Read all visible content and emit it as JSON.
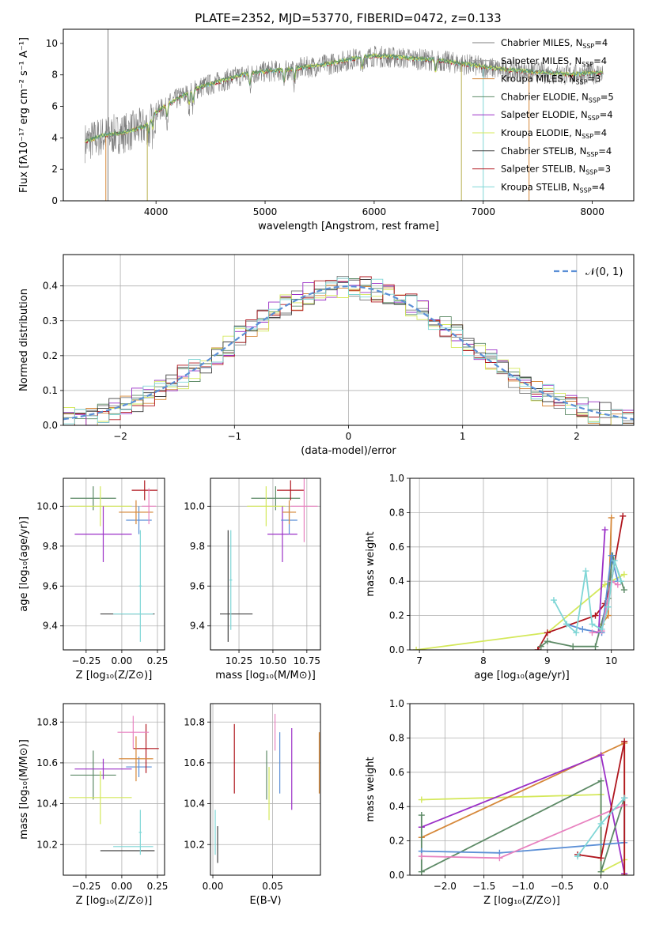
{
  "figure": {
    "title": "PLATE=2352, MJD=53770, FIBERID=0472, z=0.133"
  },
  "models": [
    {
      "name": "Chabrier MILES",
      "nssp": "4",
      "color": "#7f7f7f"
    },
    {
      "name": "Salpeter MILES",
      "nssp": "4",
      "color": "#9e9e9e"
    },
    {
      "name": "Kroupa MILES",
      "nssp": "3",
      "color": "#d6883a"
    },
    {
      "name": "Chabrier ELODIE",
      "nssp": "5",
      "color": "#5d8a66"
    },
    {
      "name": "Salpeter ELODIE",
      "nssp": "4",
      "color": "#9b30c7"
    },
    {
      "name": "Kroupa ELODIE",
      "nssp": "4",
      "color": "#d4e85a"
    },
    {
      "name": "Chabrier STELIB",
      "nssp": "4",
      "color": "#404040"
    },
    {
      "name": "Salpeter STELIB",
      "nssp": "3",
      "color": "#b0171f"
    },
    {
      "name": "Kroupa STELIB",
      "nssp": "4",
      "color": "#7fd6d6"
    }
  ],
  "chart_data": [
    {
      "id": "spectrum",
      "type": "line",
      "title": "PLATE=2352, MJD=53770, FIBERID=0472, z=0.133",
      "xlabel": "wavelength [Angstrom, rest frame]",
      "ylabel": "Flux [fλ10⁻¹⁷ erg cm⁻² s⁻¹ A⁻¹]",
      "xlim": [
        3150,
        8380
      ],
      "ylim": [
        0,
        10.9
      ],
      "xticks": [
        4000,
        5000,
        6000,
        7000,
        8000
      ],
      "yticks": [
        0,
        2,
        4,
        6,
        8,
        10
      ],
      "grid": false,
      "legend": "right",
      "continuum": [
        [
          3350,
          3.7
        ],
        [
          3500,
          4.1
        ],
        [
          3700,
          4.3
        ],
        [
          3900,
          4.7
        ],
        [
          4000,
          5.6
        ],
        [
          4200,
          6.5
        ],
        [
          4400,
          7.2
        ],
        [
          4600,
          7.6
        ],
        [
          4800,
          8.0
        ],
        [
          5000,
          8.2
        ],
        [
          5200,
          8.3
        ],
        [
          5400,
          8.5
        ],
        [
          5600,
          8.7
        ],
        [
          5800,
          9.0
        ],
        [
          6000,
          9.2
        ],
        [
          6200,
          9.1
        ],
        [
          6400,
          9.0
        ],
        [
          6600,
          8.9
        ],
        [
          6800,
          8.7
        ],
        [
          7000,
          8.5
        ],
        [
          7200,
          8.3
        ],
        [
          7400,
          8.2
        ],
        [
          7600,
          8.1
        ],
        [
          7800,
          8.0
        ],
        [
          8000,
          8.1
        ],
        [
          8100,
          8.1
        ]
      ],
      "model_end": [
        3350,
        8100
      ]
    },
    {
      "id": "residuals",
      "type": "histogram",
      "xlabel": "(data-model)/error",
      "ylabel": "Normed distribution",
      "xlim": [
        -2.5,
        2.5
      ],
      "ylim": [
        0,
        0.49
      ],
      "xticks": [
        -2,
        -1,
        0,
        1,
        2
      ],
      "yticks": [
        0.0,
        0.1,
        0.2,
        0.3,
        0.4
      ],
      "grid": true,
      "bin_width": 0.1,
      "reference": {
        "label": "𝒩(0, 1)",
        "mean": 0,
        "sigma": 1,
        "color": "#5b8fd6"
      }
    },
    {
      "id": "z-age",
      "type": "errorbar",
      "xlabel": "Z [log₁₀(Z/Z⊙)]",
      "ylabel": "age  [log₁₀(age/yr)]",
      "xlim": [
        -0.41,
        0.3
      ],
      "ylim": [
        9.28,
        10.14
      ],
      "xticks": [
        -0.25,
        0.0,
        0.25
      ],
      "yticks": [
        9.4,
        9.6,
        9.8,
        10.0
      ],
      "grid": true,
      "points": [
        {
          "x": -0.2,
          "y": 10.04,
          "ex": 0.16,
          "ey": 0.06,
          "c": "#5d8a66"
        },
        {
          "x": -0.15,
          "y": 10.0,
          "ex": 0.22,
          "ey": 0.1,
          "c": "#d4e85a"
        },
        {
          "x": -0.13,
          "y": 9.86,
          "ex": 0.2,
          "ey": 0.14,
          "c": "#9b30c7"
        },
        {
          "x": 0.12,
          "y": 9.93,
          "ex": 0.09,
          "ey": 0.07,
          "c": "#5b8fd6"
        },
        {
          "x": 0.16,
          "y": 10.08,
          "ex": 0.09,
          "ey": 0.05,
          "c": "#b0171f"
        },
        {
          "x": 0.1,
          "y": 9.97,
          "ex": 0.12,
          "ey": 0.06,
          "c": "#d6883a"
        },
        {
          "x": 0.19,
          "y": 10.0,
          "ex": 0.05,
          "ey": 0.09,
          "c": "#e882c0"
        },
        {
          "x": 0.04,
          "y": 9.46,
          "ex": 0.19,
          "ey": 0.0,
          "c": "#404040"
        },
        {
          "x": 0.13,
          "y": 9.6,
          "ex": 0.01,
          "ey": 0.28,
          "c": "#7fd6d6"
        },
        {
          "x": 0.08,
          "y": 9.46,
          "ex": 0.14,
          "ey": 0.0,
          "c": "#7fd6d6"
        }
      ]
    },
    {
      "id": "mass-age",
      "type": "errorbar",
      "xlabel": "mass [log₁₀(M/M⊙)]",
      "ylabel": "",
      "xlim": [
        10.04,
        10.85
      ],
      "ylim": [
        9.28,
        10.14
      ],
      "xticks": [
        10.25,
        10.5,
        10.75
      ],
      "yticks": [
        9.4,
        9.6,
        9.8,
        10.0
      ],
      "grid": true,
      "points": [
        {
          "x": 10.52,
          "y": 10.04,
          "ex": 0.18,
          "ey": 0.06,
          "c": "#5d8a66"
        },
        {
          "x": 10.45,
          "y": 10.0,
          "ex": 0.14,
          "ey": 0.1,
          "c": "#d4e85a"
        },
        {
          "x": 10.57,
          "y": 9.86,
          "ex": 0.11,
          "ey": 0.14,
          "c": "#9b30c7"
        },
        {
          "x": 10.62,
          "y": 9.93,
          "ex": 0.06,
          "ey": 0.07,
          "c": "#5b8fd6"
        },
        {
          "x": 10.63,
          "y": 10.08,
          "ex": 0.1,
          "ey": 0.05,
          "c": "#b0171f"
        },
        {
          "x": 10.62,
          "y": 9.97,
          "ex": 0.05,
          "ey": 0.06,
          "c": "#d6883a"
        },
        {
          "x": 10.73,
          "y": 10.0,
          "ex": 0.1,
          "ey": 0.18,
          "c": "#e882c0"
        },
        {
          "x": 10.23,
          "y": 9.46,
          "ex": 0.12,
          "ey": 0.0,
          "c": "#404040"
        },
        {
          "x": 10.19,
          "y": 9.63,
          "ex": 0.01,
          "ey": 0.25,
          "c": "#7fd6d6"
        },
        {
          "x": 10.17,
          "y": 9.6,
          "ex": 0.0,
          "ey": 0.28,
          "c": "#404040"
        }
      ]
    },
    {
      "id": "age-weight",
      "type": "line",
      "xlabel": "age  [log₁₀(age/yr)]",
      "ylabel": "mass weight",
      "xlim": [
        6.85,
        10.35
      ],
      "ylim": [
        0,
        1.0
      ],
      "xticks": [
        7,
        8,
        9,
        10
      ],
      "yticks": [
        0.0,
        0.2,
        0.4,
        0.6,
        0.8,
        1.0
      ],
      "grid": true,
      "series": [
        {
          "c": "#d4e85a",
          "pts": [
            [
              6.95,
              0.0
            ],
            [
              9.0,
              0.1
            ],
            [
              9.9,
              0.38
            ],
            [
              10.2,
              0.44
            ]
          ]
        },
        {
          "c": "#b0171f",
          "pts": [
            [
              8.85,
              0.0
            ],
            [
              9.0,
              0.1
            ],
            [
              9.75,
              0.2
            ],
            [
              9.9,
              0.27
            ],
            [
              10.0,
              0.4
            ],
            [
              10.18,
              0.78
            ]
          ]
        },
        {
          "c": "#d6883a",
          "pts": [
            [
              9.85,
              0.15
            ],
            [
              9.95,
              0.2
            ],
            [
              10.0,
              0.77
            ]
          ]
        },
        {
          "c": "#9b30c7",
          "pts": [
            [
              9.8,
              0.1
            ],
            [
              9.9,
              0.7
            ]
          ]
        },
        {
          "c": "#5d8a66",
          "pts": [
            [
              8.9,
              0.02
            ],
            [
              9.0,
              0.05
            ],
            [
              9.4,
              0.02
            ],
            [
              9.75,
              0.02
            ],
            [
              9.95,
              0.3
            ],
            [
              10.02,
              0.55
            ],
            [
              10.2,
              0.35
            ]
          ]
        },
        {
          "c": "#5b8fd6",
          "pts": [
            [
              9.3,
              0.15
            ],
            [
              9.55,
              0.12
            ],
            [
              9.85,
              0.1
            ],
            [
              10.0,
              0.55
            ],
            [
              10.1,
              0.4
            ]
          ]
        },
        {
          "c": "#e882c0",
          "pts": [
            [
              9.7,
              0.1
            ],
            [
              9.85,
              0.11
            ],
            [
              10.0,
              0.4
            ],
            [
              10.1,
              0.38
            ]
          ]
        },
        {
          "c": "#7fd6d6",
          "pts": [
            [
              9.1,
              0.29
            ],
            [
              9.3,
              0.15
            ],
            [
              9.45,
              0.1
            ],
            [
              9.6,
              0.46
            ],
            [
              9.7,
              0.15
            ],
            [
              9.85,
              0.12
            ],
            [
              9.95,
              0.25
            ],
            [
              10.05,
              0.52
            ],
            [
              10.15,
              0.4
            ]
          ]
        }
      ]
    },
    {
      "id": "z-mass",
      "type": "errorbar",
      "xlabel": "Z [log₁₀(Z/Z⊙)]",
      "ylabel": "mass [log₁₀(M/M⊙)]",
      "xlim": [
        -0.41,
        0.3
      ],
      "ylim": [
        10.05,
        10.89
      ],
      "xticks": [
        -0.25,
        0.0,
        0.25
      ],
      "yticks": [
        10.2,
        10.4,
        10.6,
        10.8
      ],
      "grid": true,
      "points": [
        {
          "x": -0.2,
          "y": 10.54,
          "ex": 0.16,
          "ey": 0.12,
          "c": "#5d8a66"
        },
        {
          "x": -0.15,
          "y": 10.43,
          "ex": 0.22,
          "ey": 0.13,
          "c": "#d4e85a"
        },
        {
          "x": -0.13,
          "y": 10.57,
          "ex": 0.2,
          "ey": 0.05,
          "c": "#9b30c7"
        },
        {
          "x": 0.12,
          "y": 10.58,
          "ex": 0.09,
          "ey": 0.05,
          "c": "#5b8fd6"
        },
        {
          "x": 0.17,
          "y": 10.67,
          "ex": 0.09,
          "ey": 0.12,
          "c": "#b0171f"
        },
        {
          "x": 0.1,
          "y": 10.62,
          "ex": 0.12,
          "ey": 0.11,
          "c": "#d6883a"
        },
        {
          "x": 0.08,
          "y": 10.75,
          "ex": 0.11,
          "ey": 0.08,
          "c": "#e882c0"
        },
        {
          "x": 0.04,
          "y": 10.17,
          "ex": 0.19,
          "ey": 0.0,
          "c": "#404040"
        },
        {
          "x": 0.13,
          "y": 10.26,
          "ex": 0.01,
          "ey": 0.11,
          "c": "#7fd6d6"
        },
        {
          "x": 0.08,
          "y": 10.19,
          "ex": 0.14,
          "ey": 0.0,
          "c": "#7fd6d6"
        }
      ]
    },
    {
      "id": "ebv-mass",
      "type": "errorbar",
      "xlabel": "E(B-V)",
      "ylabel": "",
      "xlim": [
        -0.002,
        0.09
      ],
      "ylim": [
        10.05,
        10.89
      ],
      "xticks": [
        0.0,
        0.05
      ],
      "yticks": [
        10.2,
        10.4,
        10.6,
        10.8
      ],
      "grid": true,
      "points": [
        {
          "x": 0.018,
          "y": 10.62,
          "ex": 0,
          "ey": 0.17,
          "c": "#b0171f"
        },
        {
          "x": 0.045,
          "y": 10.54,
          "ex": 0,
          "ey": 0.12,
          "c": "#5d8a66"
        },
        {
          "x": 0.047,
          "y": 10.45,
          "ex": 0,
          "ey": 0.13,
          "c": "#d4e85a"
        },
        {
          "x": 0.052,
          "y": 10.75,
          "ex": 0,
          "ey": 0.09,
          "c": "#e882c0"
        },
        {
          "x": 0.056,
          "y": 10.6,
          "ex": 0,
          "ey": 0.15,
          "c": "#5b8fd6"
        },
        {
          "x": 0.066,
          "y": 10.57,
          "ex": 0,
          "ey": 0.2,
          "c": "#9b30c7"
        },
        {
          "x": 0.089,
          "y": 10.6,
          "ex": 0,
          "ey": 0.15,
          "c": "#d6883a"
        },
        {
          "x": 0.002,
          "y": 10.26,
          "ex": 0,
          "ey": 0.11,
          "c": "#7fd6d6"
        },
        {
          "x": 0.004,
          "y": 10.2,
          "ex": 0,
          "ey": 0.09,
          "c": "#404040"
        }
      ]
    },
    {
      "id": "z-weight",
      "type": "line",
      "xlabel": "Z [log₁₀(Z/Z⊙)]",
      "ylabel": "mass weight",
      "xlim": [
        -2.45,
        0.42
      ],
      "ylim": [
        0,
        1.0
      ],
      "xticks": [
        -2.0,
        -1.5,
        -1.0,
        -0.5,
        0.0
      ],
      "yticks": [
        0.0,
        0.2,
        0.4,
        0.6,
        0.8,
        1.0
      ],
      "grid": true,
      "series": [
        {
          "c": "#d4e85a",
          "pts": [
            [
              -2.3,
              0.44
            ],
            [
              0.0,
              0.47
            ],
            [
              0.0,
              0.02
            ],
            [
              0.3,
              0.09
            ],
            [
              0.3,
              0.0
            ]
          ]
        },
        {
          "c": "#d6883a",
          "pts": [
            [
              -2.3,
              0.22
            ],
            [
              0.3,
              0.77
            ],
            [
              0.3,
              0.0
            ]
          ]
        },
        {
          "c": "#9b30c7",
          "pts": [
            [
              -2.3,
              0.28
            ],
            [
              0.0,
              0.7
            ],
            [
              0.3,
              0.01
            ]
          ]
        },
        {
          "c": "#5d8a66",
          "pts": [
            [
              -2.3,
              0.35
            ],
            [
              -2.3,
              0.02
            ],
            [
              0.0,
              0.55
            ],
            [
              0.0,
              0.02
            ],
            [
              0.3,
              0.45
            ]
          ]
        },
        {
          "c": "#5b8fd6",
          "pts": [
            [
              -2.3,
              0.14
            ],
            [
              -1.3,
              0.13
            ],
            [
              0.3,
              0.19
            ],
            [
              0.3,
              0.45
            ]
          ]
        },
        {
          "c": "#e882c0",
          "pts": [
            [
              -2.3,
              0.11
            ],
            [
              -1.3,
              0.1
            ],
            [
              0.3,
              0.41
            ]
          ]
        },
        {
          "c": "#b0171f",
          "pts": [
            [
              -0.3,
              0.12
            ],
            [
              0.0,
              0.1
            ],
            [
              0.3,
              0.78
            ],
            [
              0.3,
              0.0
            ]
          ]
        },
        {
          "c": "#7fd6d6",
          "pts": [
            [
              -0.3,
              0.11
            ],
            [
              0.0,
              0.3
            ],
            [
              0.3,
              0.45
            ]
          ]
        }
      ]
    }
  ]
}
